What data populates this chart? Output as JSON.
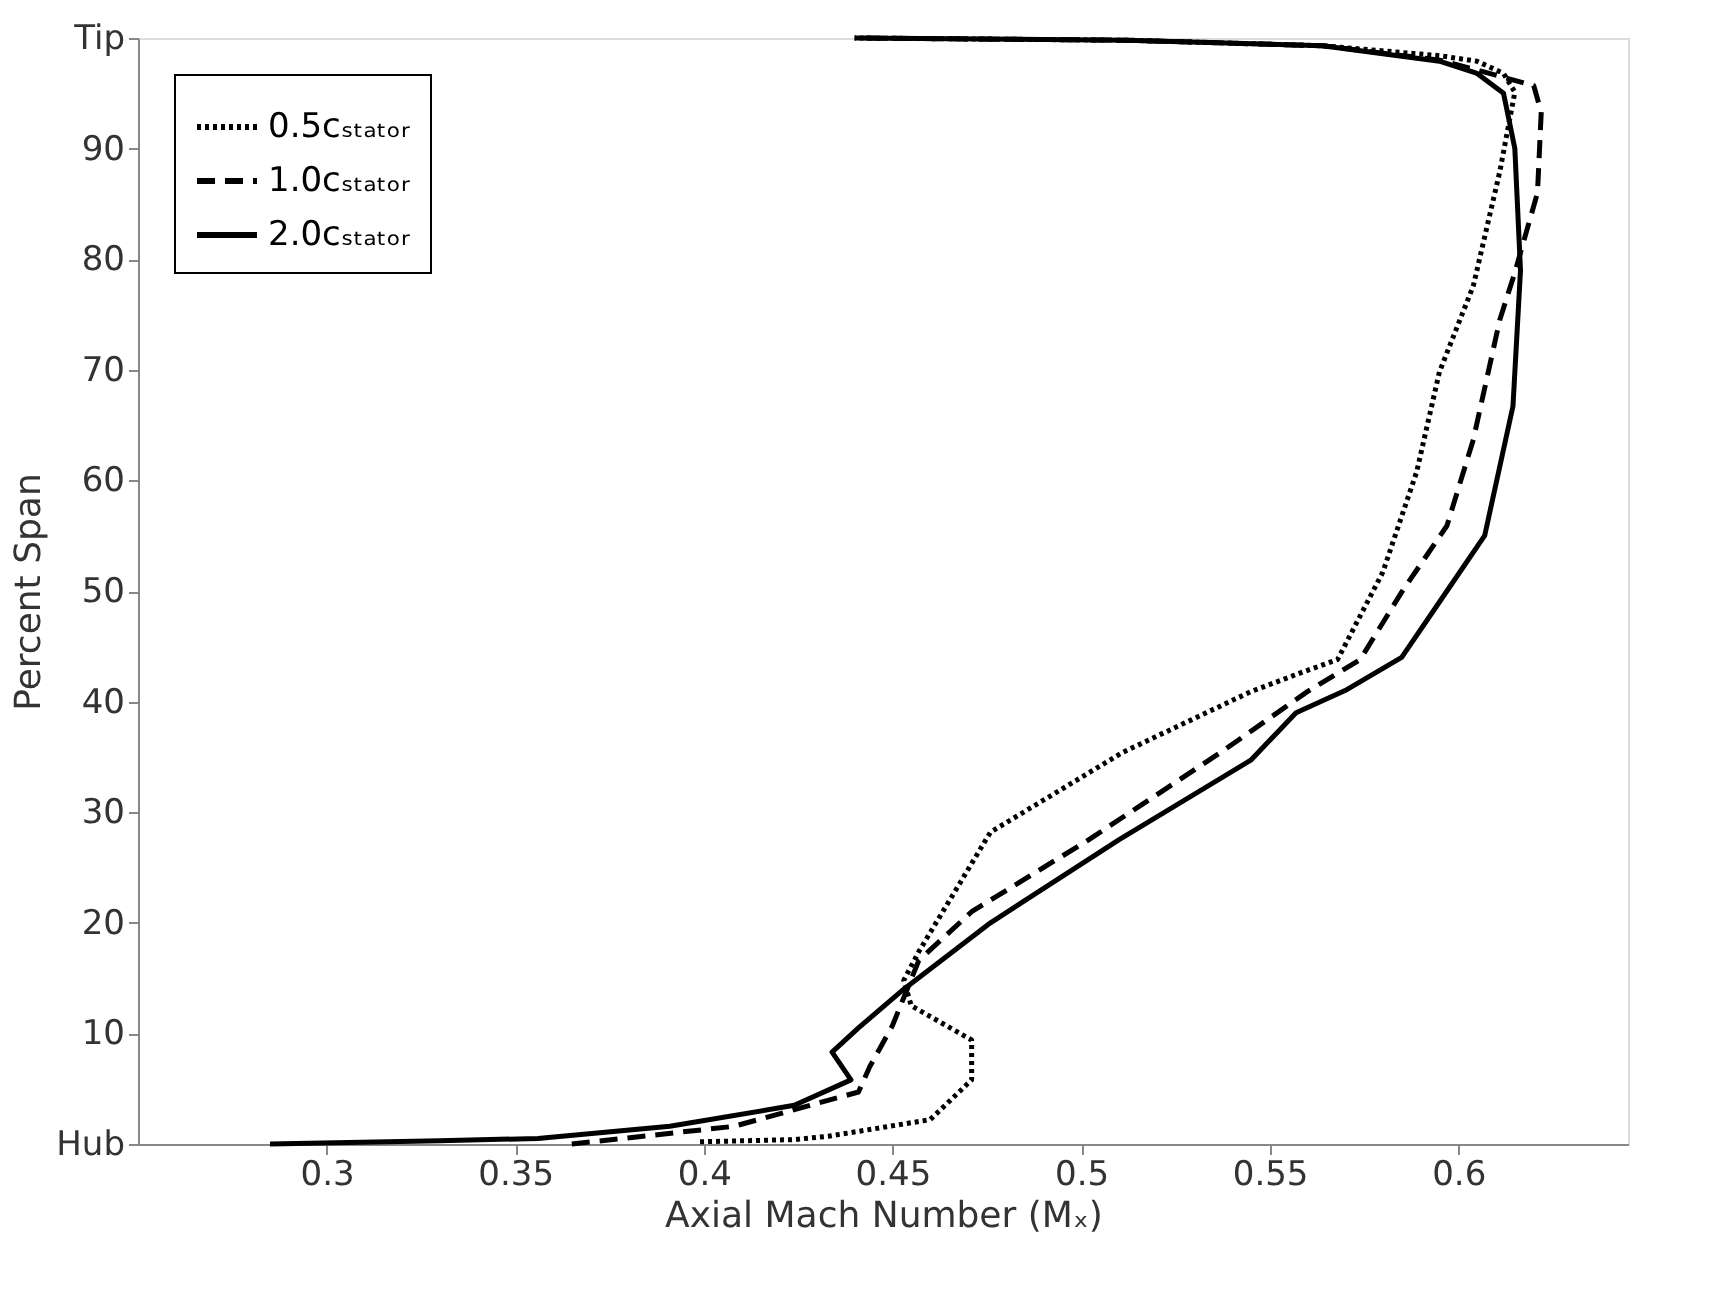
{
  "chart_data": {
    "type": "line",
    "xlabel": "Axial Mach Number (Mₓ)",
    "ylabel": "Percent Span",
    "xlim": [
      0.25,
      0.645
    ],
    "xticks": [
      0.3,
      0.35,
      0.4,
      0.45,
      0.5,
      0.55,
      0.6
    ],
    "ylim": [
      0,
      100
    ],
    "yticks": [
      {
        "value": 0,
        "label": "Hub"
      },
      10,
      20,
      30,
      40,
      50,
      60,
      70,
      80,
      90,
      {
        "value": 100,
        "label": "Tip"
      }
    ],
    "grid": false,
    "legend": "top left",
    "marker": "none",
    "series": [
      {
        "name": "0.5cₛₜₐₜₒᵣ",
        "color": "#000000",
        "line_style": "dotted",
        "x": [
          0.399,
          0.424,
          0.433,
          0.46,
          0.471,
          0.471,
          0.455,
          0.453,
          0.457,
          0.476,
          0.511,
          0.545,
          0.559,
          0.568,
          0.58,
          0.589,
          0.595,
          0.604,
          0.611,
          0.615,
          0.612,
          0.605,
          0.595,
          0.564,
          0.512,
          0.44
        ],
        "values": [
          0.2,
          0.4,
          0.7,
          2.2,
          5.8,
          9.4,
          12.5,
          14.8,
          17.4,
          28.2,
          35.4,
          40.9,
          42.7,
          43.8,
          51.7,
          60.8,
          69.8,
          77.6,
          87.9,
          95.1,
          96.8,
          97.9,
          98.4,
          99.3,
          99.8,
          100
        ]
      },
      {
        "name": "1.0cₛₜₐₜₒᵣ",
        "color": "#000000",
        "line_style": "dashed",
        "x": [
          0.365,
          0.408,
          0.441,
          0.444,
          0.45,
          0.457,
          0.471,
          0.502,
          0.537,
          0.56,
          0.574,
          0.585,
          0.597,
          0.604,
          0.611,
          0.615,
          0.621,
          0.622,
          0.62,
          0.605,
          0.595,
          0.564,
          0.512,
          0.44
        ],
        "values": [
          0,
          1.6,
          4.7,
          7,
          10.7,
          16.6,
          21,
          27.5,
          35.4,
          40.9,
          43.8,
          49.9,
          55.9,
          63.7,
          74.5,
          78.8,
          86,
          93.3,
          95.7,
          97.1,
          98.0,
          99.3,
          99.8,
          100
        ]
      },
      {
        "name": "2.0cₛₜₐₜₒᵣ",
        "color": "#000000",
        "line_style": "solid",
        "x": [
          0.285,
          0.33,
          0.356,
          0.391,
          0.424,
          0.439,
          0.434,
          0.441,
          0.453,
          0.476,
          0.51,
          0.545,
          0.557,
          0.57,
          0.585,
          0.597,
          0.607,
          0.6145,
          0.6165,
          0.615,
          0.612,
          0.605,
          0.595,
          0.564,
          0.512,
          0.44
        ],
        "values": [
          0,
          0.3,
          0.5,
          1.6,
          3.5,
          5.8,
          8.3,
          10.5,
          14,
          20,
          27.5,
          34.7,
          39,
          41,
          44,
          50,
          55,
          66.7,
          79,
          90,
          95,
          96.8,
          97.9,
          99.3,
          99.8,
          100
        ]
      }
    ]
  }
}
